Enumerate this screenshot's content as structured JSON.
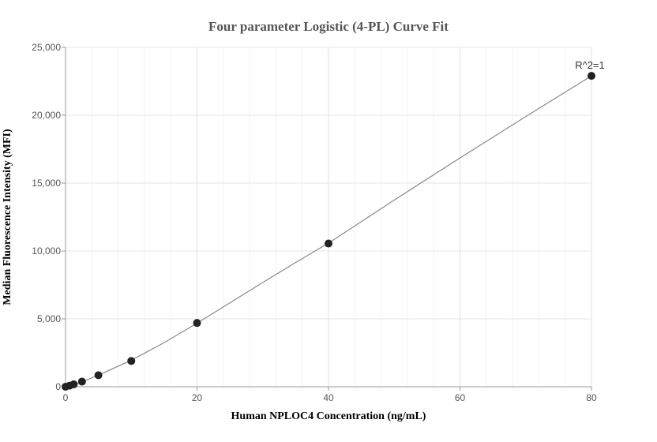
{
  "chart_data": {
    "type": "scatter",
    "title": "Four parameter Logistic (4-PL) Curve Fit",
    "xlabel": "Human NPLOC4 Concentration (ng/mL)",
    "ylabel": "Median Fluorescence Intensity (MFI)",
    "xlim": [
      0,
      80
    ],
    "ylim": [
      0,
      25000
    ],
    "x_ticks": [
      0,
      20,
      40,
      60,
      80
    ],
    "x_tick_labels": [
      "0",
      "20",
      "40",
      "60",
      "80"
    ],
    "y_ticks": [
      0,
      5000,
      10000,
      15000,
      20000,
      25000
    ],
    "y_tick_labels": [
      "0",
      "5,000",
      "10,000",
      "15,000",
      "20,000",
      "25,000"
    ],
    "grid": true,
    "series": [
      {
        "type": "scatter",
        "x": [
          0,
          0.625,
          1.25,
          2.5,
          5,
          10,
          20,
          40,
          80
        ],
        "y": [
          0,
          80,
          180,
          380,
          850,
          1900,
          4700,
          10550,
          22900
        ]
      },
      {
        "type": "line",
        "x": [
          0,
          0.625,
          1.25,
          2.5,
          5,
          10,
          15,
          20,
          25,
          30,
          35,
          40,
          50,
          60,
          70,
          80
        ],
        "y": [
          0,
          60,
          150,
          360,
          850,
          1950,
          3250,
          4680,
          6180,
          7680,
          9150,
          10580,
          13750,
          16850,
          19900,
          22900
        ]
      }
    ],
    "annotations": [
      {
        "text": "R^2=1",
        "x": 80,
        "y": 22900
      }
    ],
    "colors": {
      "point": "#222222",
      "curve": "#888888",
      "grid": "#e6e6e6",
      "axis": "#999999"
    }
  }
}
